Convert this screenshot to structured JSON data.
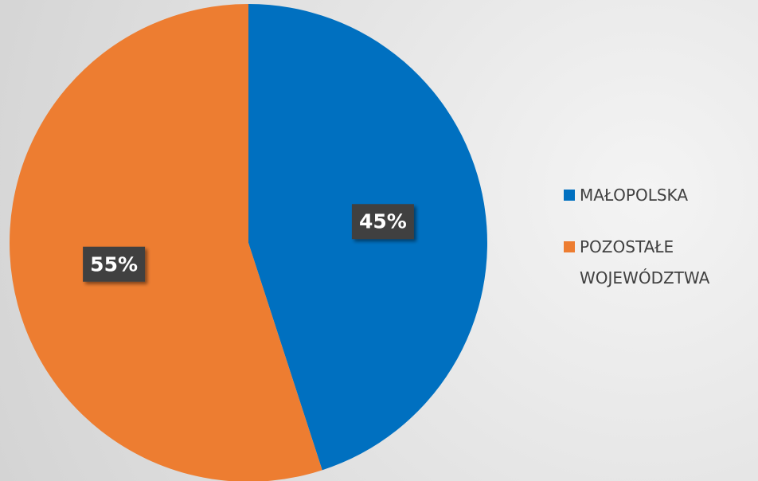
{
  "chart_data": {
    "type": "pie",
    "categories": [
      "MAŁOPOLSKA",
      "POZOSTAŁE WOJEWÓDZTWA"
    ],
    "values": [
      45,
      55
    ],
    "value_labels": [
      "45%",
      "55%"
    ],
    "colors": [
      "#0070c0",
      "#ed7d31"
    ],
    "legend": "right"
  }
}
